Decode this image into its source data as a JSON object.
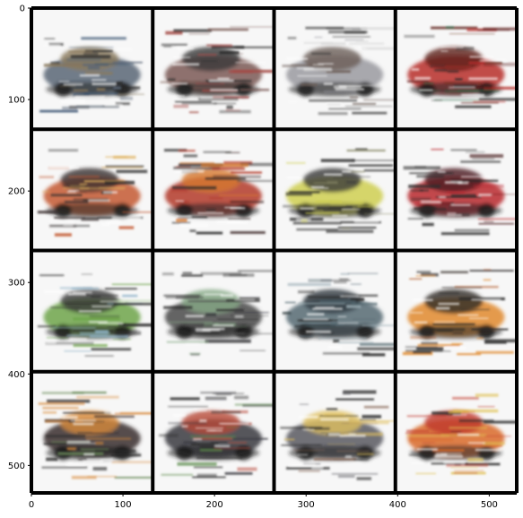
{
  "chart_data": {
    "type": "image",
    "title": "",
    "xlabel": "",
    "ylabel": "",
    "xlim": [
      0,
      530
    ],
    "ylim": [
      530,
      0
    ],
    "x_ticks": [
      0,
      100,
      200,
      300,
      400,
      500
    ],
    "y_ticks": [
      0,
      100,
      200,
      300,
      400,
      500
    ],
    "grid": {
      "rows": 4,
      "cols": 4,
      "cell_size": 132.5
    },
    "grid_line_color": "#000000",
    "cells": [
      {
        "row": 0,
        "col": 0,
        "palette": [
          "#5a6675",
          "#8b7a5c",
          "#2f4b6a"
        ]
      },
      {
        "row": 0,
        "col": 1,
        "palette": [
          "#7b5a55",
          "#3a3a3a",
          "#a44b47"
        ]
      },
      {
        "row": 0,
        "col": 2,
        "palette": [
          "#9a9aa0",
          "#6c5e58",
          "#d8d8d8"
        ]
      },
      {
        "row": 0,
        "col": 3,
        "palette": [
          "#b72d2b",
          "#5c1e1c",
          "#2d6a46"
        ]
      },
      {
        "row": 1,
        "col": 0,
        "palette": [
          "#c45b34",
          "#3a3030",
          "#e0b15e"
        ]
      },
      {
        "row": 1,
        "col": 1,
        "palette": [
          "#b33a2a",
          "#d6792e",
          "#3b2a28"
        ]
      },
      {
        "row": 1,
        "col": 2,
        "palette": [
          "#cfcf52",
          "#3a3a3a",
          "#8a8a6a"
        ]
      },
      {
        "row": 1,
        "col": 3,
        "palette": [
          "#b8282f",
          "#4a1a1e",
          "#2a2a2a"
        ]
      },
      {
        "row": 2,
        "col": 0,
        "palette": [
          "#6ea54a",
          "#3a3a3a",
          "#8fb3c8"
        ]
      },
      {
        "row": 2,
        "col": 1,
        "palette": [
          "#4a4a4a",
          "#88aa88",
          "#2a2a30"
        ]
      },
      {
        "row": 2,
        "col": 2,
        "palette": [
          "#556a73",
          "#2e3a40",
          "#9fb0b8"
        ]
      },
      {
        "row": 2,
        "col": 3,
        "palette": [
          "#e08a2e",
          "#2e2a28",
          "#b35a2a"
        ]
      },
      {
        "row": 3,
        "col": 0,
        "palette": [
          "#3a3030",
          "#d88a3a",
          "#6a8a5a"
        ]
      },
      {
        "row": 3,
        "col": 1,
        "palette": [
          "#3a3a40",
          "#b84a3a",
          "#5a8a4a"
        ]
      },
      {
        "row": 3,
        "col": 2,
        "palette": [
          "#5a5a60",
          "#e0c060",
          "#8a6a5a"
        ]
      },
      {
        "row": 3,
        "col": 3,
        "palette": [
          "#d96a2a",
          "#c03a2a",
          "#e0c050"
        ]
      }
    ]
  }
}
